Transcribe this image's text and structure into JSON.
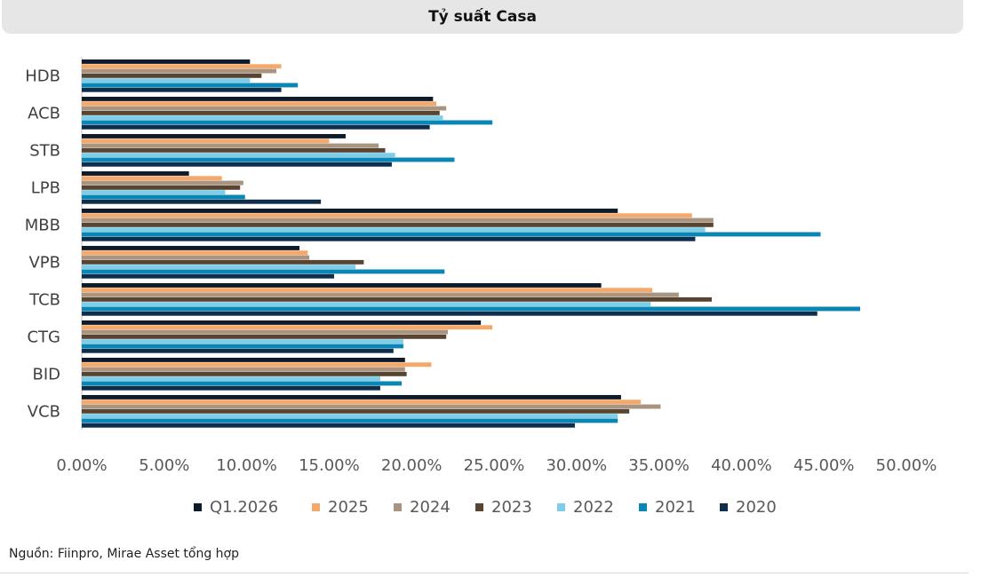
{
  "chart_data": {
    "type": "bar",
    "orientation": "horizontal",
    "title": "Tỷ suất Casa",
    "categories": [
      "HDB",
      "ACB",
      "STB",
      "LPB",
      "MBB",
      "VPB",
      "TCB",
      "CTG",
      "BID",
      "VCB"
    ],
    "series": [
      {
        "name": "Q1.2026",
        "color": "#0d1b2a",
        "values": [
          10.2,
          21.3,
          16.0,
          6.5,
          32.5,
          13.2,
          31.5,
          24.2,
          19.6,
          32.7
        ]
      },
      {
        "name": "2025",
        "color": "#f4a96a",
        "values": [
          12.1,
          21.5,
          15.0,
          8.5,
          37.0,
          13.7,
          34.6,
          24.9,
          21.2,
          33.9
        ]
      },
      {
        "name": "2024",
        "color": "#a89480",
        "values": [
          11.8,
          22.1,
          18.0,
          9.8,
          38.3,
          13.8,
          36.2,
          22.2,
          19.6,
          35.1
        ]
      },
      {
        "name": "2023",
        "color": "#574431",
        "values": [
          10.9,
          21.7,
          18.4,
          9.6,
          38.3,
          17.1,
          38.2,
          22.1,
          19.7,
          33.2
        ]
      },
      {
        "name": "2022",
        "color": "#7ecde9",
        "values": [
          10.2,
          21.9,
          19.0,
          8.7,
          37.8,
          16.6,
          34.5,
          19.5,
          18.1,
          32.5
        ]
      },
      {
        "name": "2021",
        "color": "#0a86b4",
        "values": [
          13.1,
          24.9,
          22.6,
          9.9,
          44.8,
          22.0,
          47.2,
          19.5,
          19.4,
          32.5
        ]
      },
      {
        "name": "2020",
        "color": "#0f2d4d",
        "values": [
          12.1,
          21.1,
          18.8,
          14.5,
          37.2,
          15.3,
          44.6,
          18.9,
          18.1,
          29.9
        ]
      }
    ],
    "xlim": [
      0,
      50
    ],
    "xticks": [
      "0.00%",
      "5.00%",
      "10.00%",
      "15.00%",
      "20.00%",
      "25.00%",
      "30.00%",
      "35.00%",
      "40.00%",
      "45.00%",
      "50.00%"
    ],
    "grid": false,
    "legend_position": "bottom"
  },
  "footer": {
    "source": "Nguồn: Fiinpro, Mirae Asset tổng hợp"
  }
}
